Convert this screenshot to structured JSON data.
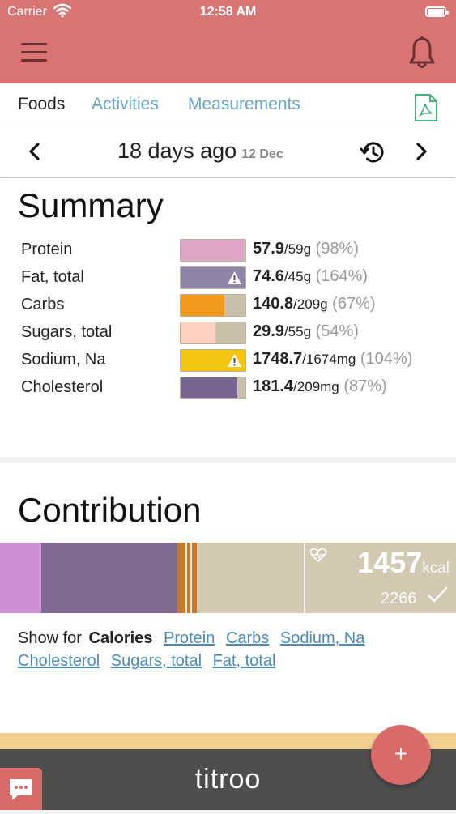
{
  "status_bar": {
    "carrier": "Carrier",
    "time": "12:58 AM"
  },
  "tabs": [
    {
      "label": "Foods",
      "active": true
    },
    {
      "label": "Activities"
    },
    {
      "label": "Measurements"
    }
  ],
  "date": {
    "main": "18 days ago",
    "sub": "12 Dec"
  },
  "summary": {
    "title": "Summary",
    "rows": [
      {
        "label": "Protein",
        "value": "57.9",
        "target": "/59g",
        "pct": " (98%)",
        "fraction": 0.98,
        "color": "#dfa6c6",
        "warning": false
      },
      {
        "label": "Fat, total",
        "value": "74.6",
        "target": "/45g",
        "pct": " (164%)",
        "fraction": 1.0,
        "color": "#8f85a8",
        "warning": true
      },
      {
        "label": "Carbs",
        "value": "140.8",
        "target": "/209g",
        "pct": " (67%)",
        "fraction": 0.67,
        "color": "#f19a1c",
        "warning": false
      },
      {
        "label": "Sugars, total",
        "value": "29.9",
        "target": "/55g",
        "pct": " (54%)",
        "fraction": 0.54,
        "color": "#fdcfc0",
        "warning": false
      },
      {
        "label": "Sodium, Na",
        "value": "1748.7",
        "target": "/1674mg",
        "pct": " (104%)",
        "fraction": 1.0,
        "color": "#f2c511",
        "warning": true
      },
      {
        "label": "Cholesterol",
        "value": "181.4",
        "target": "/209mg",
        "pct": " (87%)",
        "fraction": 0.87,
        "color": "#76668f",
        "warning": false
      }
    ]
  },
  "contribution": {
    "title": "Contribution",
    "total": "1457",
    "total_unit": "kcal",
    "target": "2266",
    "show_for_label": "Show for",
    "selected_metric": "Calories",
    "metrics": [
      "Protein",
      "Carbs",
      "Sodium, Na",
      "Cholesterol",
      "Sugars, total",
      "Fat, total"
    ]
  },
  "brand": "titroo",
  "fab_label": "+"
}
